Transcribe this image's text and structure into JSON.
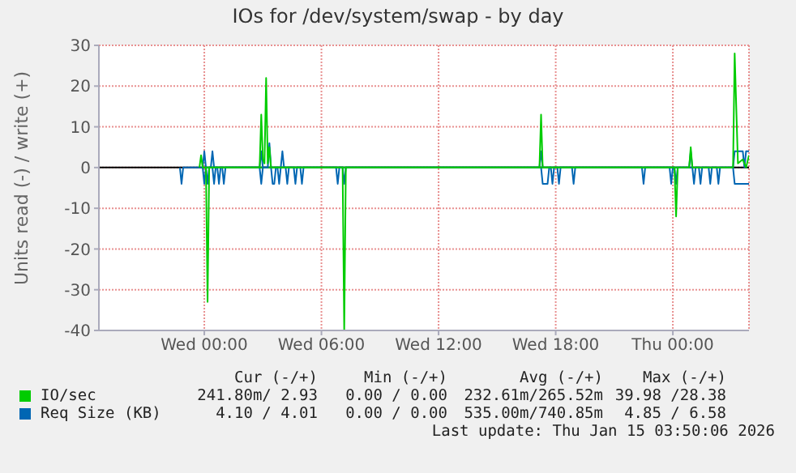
{
  "chart_data": {
    "type": "line",
    "title": "IOs for /dev/system/swap - by day",
    "ylabel": "Units read (-) / write (+)",
    "xlim": [
      "2026-01-13T18:36",
      "2026-01-15T03:54"
    ],
    "xticks": [
      {
        "value": "2026-01-14T00:00",
        "label": "Wed 00:00"
      },
      {
        "value": "2026-01-14T06:00",
        "label": "Wed 06:00"
      },
      {
        "value": "2026-01-14T12:00",
        "label": "Wed 12:00"
      },
      {
        "value": "2026-01-14T18:00",
        "label": "Wed 18:00"
      },
      {
        "value": "2026-01-15T00:00",
        "label": "Thu 00:00"
      }
    ],
    "ylim": [
      -40,
      30
    ],
    "yticks": [
      -40,
      -30,
      -20,
      -10,
      0,
      10,
      20,
      30
    ],
    "grid": true,
    "legend": "bottom",
    "marker": "none",
    "line_style": "solid",
    "ref_lines": [
      {
        "axis": "y",
        "value": 0,
        "color": "#000000"
      }
    ],
    "series": [
      {
        "name": "IO/sec",
        "color": "#00cc00",
        "x": [
          "2026-01-13T23:45",
          "2026-01-13T23:50",
          "2026-01-13T23:55",
          "2026-01-14T02:50",
          "2026-01-14T02:55",
          "2026-01-14T03:00",
          "2026-01-14T03:05",
          "2026-01-14T03:10",
          "2026-01-14T03:15",
          "2026-01-14T03:20",
          "2026-01-14T03:25",
          "2026-01-14T17:10",
          "2026-01-14T17:15",
          "2026-01-14T17:20",
          "2026-01-15T00:50",
          "2026-01-15T00:55",
          "2026-01-15T01:00",
          "2026-01-15T03:05",
          "2026-01-15T03:10",
          "2026-01-15T03:20",
          "2026-01-15T03:35",
          "2026-01-15T03:45",
          "2026-01-15T03:54"
        ],
        "values": [
          0,
          3,
          0,
          0,
          13,
          2,
          1,
          22,
          1,
          5,
          0,
          0,
          13,
          0,
          0,
          5,
          0,
          0,
          28,
          1,
          2,
          0,
          3
        ]
      },
      {
        "name": "Req Size (KB)",
        "color": "#0066b3",
        "x": [
          "2026-01-13T23:55",
          "2026-01-14T00:00",
          "2026-01-14T00:05",
          "2026-01-14T00:20",
          "2026-01-14T00:25",
          "2026-01-14T00:30",
          "2026-01-14T02:50",
          "2026-01-14T02:55",
          "2026-01-14T03:00",
          "2026-01-14T03:15",
          "2026-01-14T03:20",
          "2026-01-14T03:25",
          "2026-01-14T03:55",
          "2026-01-14T04:00",
          "2026-01-14T04:05",
          "2026-01-14T17:10",
          "2026-01-14T17:15",
          "2026-01-14T17:20",
          "2026-01-15T00:50",
          "2026-01-15T00:55",
          "2026-01-15T01:00",
          "2026-01-15T03:05",
          "2026-01-15T03:10",
          "2026-01-15T03:15",
          "2026-01-15T03:35",
          "2026-01-15T03:40",
          "2026-01-15T03:45",
          "2026-01-15T03:54"
        ],
        "values": [
          0,
          4,
          0,
          0,
          4,
          0,
          0,
          4,
          0,
          0,
          6,
          0,
          0,
          4,
          0,
          0,
          4,
          0,
          0,
          4,
          0,
          0,
          4,
          4,
          4,
          0,
          4,
          4
        ]
      },
      {
        "color": "#00cc00",
        "x": [
          "2026-01-14T00:05",
          "2026-01-14T00:10",
          "2026-01-14T00:15",
          "2026-01-14T07:05",
          "2026-01-14T07:10",
          "2026-01-14T07:15",
          "2026-01-15T00:05",
          "2026-01-15T00:10",
          "2026-01-15T00:15"
        ],
        "values": [
          0,
          -33,
          0,
          0,
          -40,
          0,
          0,
          -12,
          0
        ]
      },
      {
        "color": "#0066b3",
        "x": [
          "2026-01-13T22:45",
          "2026-01-13T22:50",
          "2026-01-13T22:55",
          "2026-01-13T23:55",
          "2026-01-14T00:00",
          "2026-01-14T00:05",
          "2026-01-14T00:10",
          "2026-01-14T00:15",
          "2026-01-14T00:25",
          "2026-01-14T00:30",
          "2026-01-14T00:35",
          "2026-01-14T00:40",
          "2026-01-14T00:45",
          "2026-01-14T00:50",
          "2026-01-14T00:55",
          "2026-01-14T01:00",
          "2026-01-14T01:05",
          "2026-01-14T02:50",
          "2026-01-14T02:55",
          "2026-01-14T03:00",
          "2026-01-14T03:25",
          "2026-01-14T03:30",
          "2026-01-14T03:35",
          "2026-01-14T03:40",
          "2026-01-14T03:45",
          "2026-01-14T03:50",
          "2026-01-14T03:55",
          "2026-01-14T04:10",
          "2026-01-14T04:15",
          "2026-01-14T04:20",
          "2026-01-14T04:35",
          "2026-01-14T04:40",
          "2026-01-14T04:45",
          "2026-01-14T04:55",
          "2026-01-14T05:00",
          "2026-01-14T05:05",
          "2026-01-14T06:45",
          "2026-01-14T06:50",
          "2026-01-14T06:55",
          "2026-01-14T07:05",
          "2026-01-14T07:10",
          "2026-01-14T07:15",
          "2026-01-14T17:15",
          "2026-01-14T17:20",
          "2026-01-14T17:35",
          "2026-01-14T17:40",
          "2026-01-14T17:45",
          "2026-01-14T17:50",
          "2026-01-14T17:55",
          "2026-01-14T18:05",
          "2026-01-14T18:10",
          "2026-01-14T18:15",
          "2026-01-14T18:50",
          "2026-01-14T18:55",
          "2026-01-14T19:00",
          "2026-01-14T22:25",
          "2026-01-14T22:30",
          "2026-01-14T22:35",
          "2026-01-14T23:50",
          "2026-01-14T23:55",
          "2026-01-15T00:00",
          "2026-01-15T00:05",
          "2026-01-15T00:10",
          "2026-01-15T00:15",
          "2026-01-15T01:00",
          "2026-01-15T01:05",
          "2026-01-15T01:10",
          "2026-01-15T01:20",
          "2026-01-15T01:25",
          "2026-01-15T01:30",
          "2026-01-15T01:50",
          "2026-01-15T01:55",
          "2026-01-15T02:00",
          "2026-01-15T02:15",
          "2026-01-15T02:20",
          "2026-01-15T02:25",
          "2026-01-15T03:05",
          "2026-01-15T03:10",
          "2026-01-15T03:54"
        ],
        "values": [
          0,
          -4,
          0,
          0,
          -4,
          0,
          -4,
          0,
          0,
          -4,
          0,
          0,
          -4,
          0,
          0,
          -4,
          0,
          0,
          -4,
          0,
          0,
          -4,
          -4,
          0,
          0,
          -4,
          0,
          0,
          -4,
          0,
          0,
          -4,
          0,
          0,
          -4,
          0,
          0,
          -4,
          0,
          0,
          -4,
          0,
          0,
          -4,
          -4,
          0,
          0,
          -4,
          0,
          0,
          -4,
          0,
          0,
          -4,
          0,
          0,
          -4,
          0,
          0,
          -4,
          0,
          0,
          -4,
          0,
          0,
          -4,
          0,
          0,
          -4,
          0,
          0,
          -4,
          0,
          0,
          -4,
          0,
          0,
          -4,
          -4
        ]
      }
    ],
    "annotations": [
      "Cur (-/+)",
      "Min (-/+)",
      "Avg (-/+)",
      "Max (-/+)",
      "241.80m/ 2.93",
      "0.00 / 0.00",
      "232.61m/265.52m",
      "39.98 /28.38",
      "4.10 / 4.01",
      "0.00 / 0.00",
      "535.00m/740.85m",
      "4.85 / 6.58",
      "Last update: Thu Jan 15 03:50:06 2026"
    ]
  }
}
